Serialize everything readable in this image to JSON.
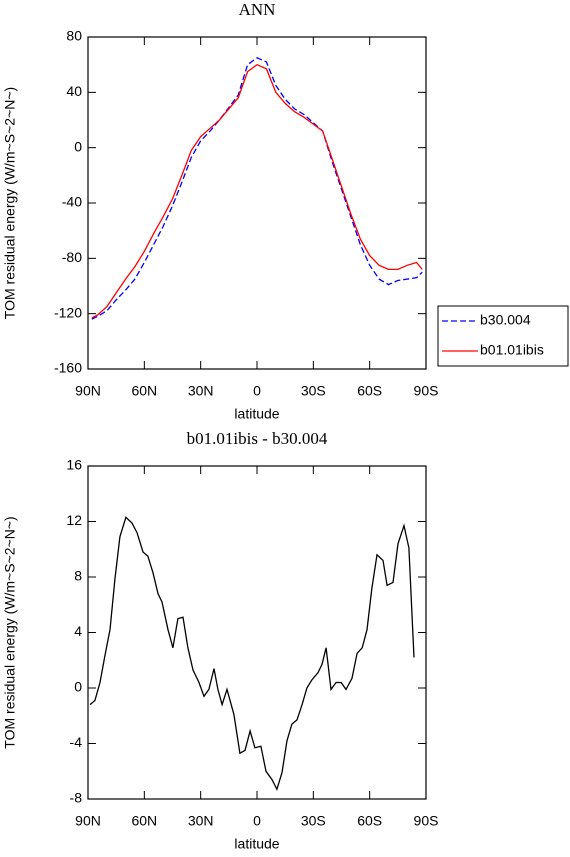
{
  "chart_data": [
    {
      "type": "line",
      "title": "ANN",
      "xlabel": "latitude",
      "ylabel": "TOM residual energy (W/m~S~2~N~)",
      "x": [
        88,
        85,
        80,
        75,
        70,
        65,
        60,
        55,
        50,
        45,
        40,
        35,
        30,
        25,
        20,
        15,
        10,
        5,
        0,
        -5,
        -10,
        -15,
        -20,
        -25,
        -30,
        -35,
        -40,
        -45,
        -50,
        -55,
        -60,
        -65,
        -70,
        -75,
        -80,
        -85,
        -88
      ],
      "series": [
        {
          "name": "b30.004",
          "color": "#0000ff",
          "dash": true,
          "values": [
            -124,
            -122,
            -118,
            -110,
            -103,
            -95,
            -83,
            -70,
            -57,
            -42,
            -25,
            -7,
            5,
            12,
            20,
            29,
            38,
            60,
            65,
            62,
            45,
            35,
            28,
            24,
            18,
            12,
            -10,
            -30,
            -50,
            -70,
            -85,
            -95,
            -99,
            -96,
            -95,
            -94,
            -90
          ]
        },
        {
          "name": "b01.01ibis",
          "color": "#ff0000",
          "dash": false,
          "values": [
            -123,
            -121,
            -115,
            -105,
            -95,
            -86,
            -75,
            -62,
            -50,
            -37,
            -20,
            -2,
            8,
            14,
            20,
            28,
            36,
            55,
            60,
            57,
            40,
            32,
            26,
            22,
            17,
            12,
            -8,
            -28,
            -48,
            -66,
            -78,
            -85,
            -88,
            -88,
            -85,
            -83,
            -88
          ]
        }
      ],
      "xlim": [
        90,
        -90
      ],
      "xticks": [
        {
          "value": 90,
          "label": "90N"
        },
        {
          "value": 60,
          "label": "60N"
        },
        {
          "value": 30,
          "label": "30N"
        },
        0,
        {
          "value": -30,
          "label": "30S"
        },
        {
          "value": -60,
          "label": "60S"
        },
        {
          "value": -90,
          "label": "90S"
        }
      ],
      "ylim": [
        -160,
        80
      ],
      "yticks": [
        80,
        40,
        0,
        -40,
        -80,
        -120,
        -160
      ]
    },
    {
      "type": "line",
      "title": "b01.01ibis - b30.004",
      "xlabel": "latitude",
      "ylabel": "TOM residual energy (W/m~S~2~N~)",
      "x": [
        88.9,
        86.3,
        83.6,
        80.9,
        78.3,
        75.6,
        73.0,
        69.8,
        66.6,
        63.9,
        60.7,
        58.1,
        55.4,
        52.7,
        50.6,
        47.4,
        44.8,
        42.1,
        39.4,
        36.8,
        34.1,
        30.9,
        28.2,
        25.6,
        22.9,
        20.8,
        18.6,
        16.0,
        12.3,
        9.1,
        6.4,
        3.7,
        1.1,
        -2.1,
        -4.8,
        -8.0,
        -10.6,
        -13.3,
        -16.0,
        -18.6,
        -21.3,
        -24.0,
        -26.6,
        -29.3,
        -32.5,
        -34.6,
        -36.8,
        -39.4,
        -42.1,
        -44.8,
        -47.4,
        -50.6,
        -53.3,
        -56.0,
        -58.6,
        -61.2,
        -63.9,
        -67.1,
        -69.3,
        -72.4,
        -75.1,
        -78.3,
        -80.9,
        -83.6
      ],
      "series": [
        {
          "color": "#000000",
          "dash": false,
          "values": [
            -1.2,
            -0.9,
            0.4,
            2.4,
            4.2,
            7.9,
            10.9,
            12.3,
            11.9,
            11.2,
            9.8,
            9.5,
            8.3,
            6.8,
            6.2,
            4.2,
            2.9,
            5.0,
            5.1,
            2.9,
            1.3,
            0.4,
            -0.6,
            -0.1,
            1.4,
            -0.1,
            -1.2,
            -0.1,
            -1.9,
            -4.7,
            -4.5,
            -3.1,
            -4.3,
            -4.2,
            -6.0,
            -6.6,
            -7.3,
            -6.1,
            -3.8,
            -2.6,
            -2.3,
            -1.2,
            0,
            0.6,
            1.1,
            1.7,
            2.9,
            -0.1,
            0.4,
            0.4,
            -0.1,
            0.7,
            2.5,
            2.9,
            4.2,
            7.2,
            9.6,
            9.2,
            7.4,
            7.6,
            10.4,
            11.7,
            10.1,
            2.2
          ]
        }
      ],
      "xlim": [
        90,
        -90
      ],
      "xticks": [
        {
          "value": 90,
          "label": "90N"
        },
        {
          "value": 60,
          "label": "60N"
        },
        {
          "value": 30,
          "label": "30N"
        },
        0,
        {
          "value": -30,
          "label": "30S"
        },
        {
          "value": -60,
          "label": "60S"
        },
        {
          "value": -90,
          "label": "90S"
        }
      ],
      "ylim": [
        -8,
        16
      ],
      "yticks": [
        16,
        12,
        8,
        4,
        0,
        -4,
        -8
      ]
    }
  ]
}
